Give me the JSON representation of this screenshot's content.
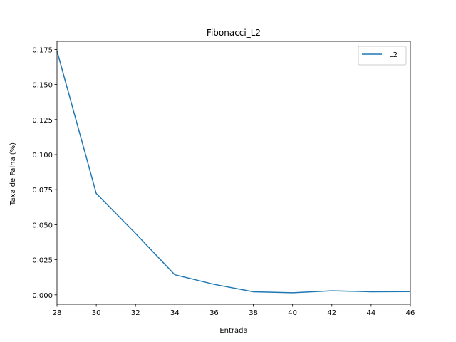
{
  "chart_data": {
    "type": "line",
    "title": "Fibonacci_L2",
    "xlabel": "Entrada",
    "ylabel": "Taxa de Falha (%)",
    "xlim": [
      28,
      46
    ],
    "ylim": [
      -0.0067,
      0.1808
    ],
    "x_ticks": [
      28,
      30,
      32,
      34,
      36,
      38,
      40,
      42,
      44,
      46
    ],
    "y_ticks": [
      0.0,
      0.025,
      0.05,
      0.075,
      0.1,
      0.125,
      0.15,
      0.175
    ],
    "y_tick_labels": [
      "0.000",
      "0.025",
      "0.050",
      "0.075",
      "0.100",
      "0.125",
      "0.150",
      "0.175"
    ],
    "grid": false,
    "legend_position": "top-right",
    "series": [
      {
        "name": "L2",
        "color": "#1f77b4",
        "x": [
          28,
          30,
          32,
          34,
          36,
          38,
          40,
          42,
          44,
          46
        ],
        "y": [
          0.174,
          0.0723,
          0.0438,
          0.0143,
          0.0075,
          0.0022,
          0.0015,
          0.0029,
          0.0022,
          0.0023
        ]
      }
    ]
  }
}
